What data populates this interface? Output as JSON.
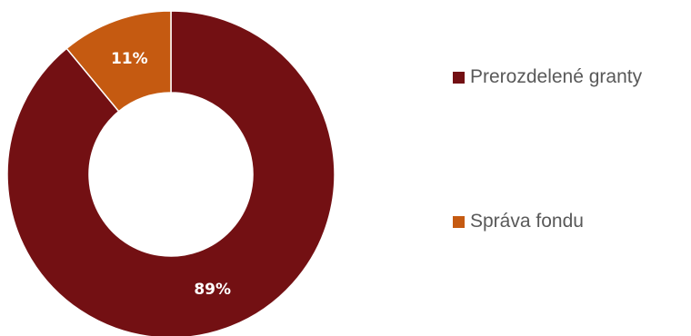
{
  "chart_data": {
    "type": "pie",
    "donut": true,
    "categories": [
      "Prerozdelené granty",
      "Správa fondu"
    ],
    "values": [
      89,
      11
    ],
    "data_labels": [
      "89%",
      "11%"
    ],
    "colors": [
      "#731013",
      "#C55A11"
    ],
    "legend_position": "right",
    "title": "",
    "start_angle_deg": 0,
    "direction": "clockwise"
  }
}
